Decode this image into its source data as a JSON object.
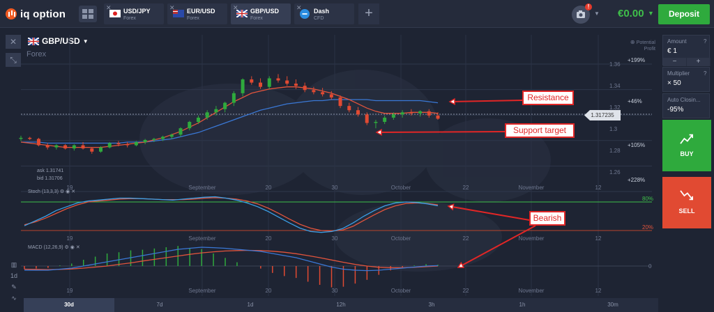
{
  "app": {
    "logo_text": "iq option"
  },
  "tabs": [
    {
      "name": "USD/JPY",
      "sub": "Forex",
      "flag": "jp"
    },
    {
      "name": "EUR/USD",
      "sub": "Forex",
      "flag": "eu"
    },
    {
      "name": "GBP/USD",
      "sub": "Forex",
      "flag": "gb"
    },
    {
      "name": "Dash",
      "sub": "CFD",
      "flag": "dash"
    }
  ],
  "header": {
    "balance": "€0.00",
    "deposit_label": "Deposit",
    "notification_count": "!"
  },
  "chart_header": {
    "pair": "GBP/USD",
    "category": "Forex",
    "potential_label": "Potential Profit"
  },
  "right_panel": {
    "amount_label": "Amount",
    "amount_value": "€ 1",
    "multiplier_label": "Multiplier",
    "multiplier_value": "× 50",
    "autoclose_label": "Auto Closin...",
    "autoclose_value": "-95%",
    "buy_label": "BUY",
    "sell_label": "SELL"
  },
  "price": {
    "ask": "ask 1.31741",
    "bid": "bid 1.31706",
    "current": "1.317235"
  },
  "profit_levels": [
    "+199%",
    "+46%",
    "+105%",
    "+228%"
  ],
  "price_ticks": [
    "1.36",
    "1.34",
    "1.32",
    "1.3",
    "1.28",
    "1.26"
  ],
  "time_ticks": [
    "19",
    "September",
    "20",
    "30",
    "October",
    "22",
    "November",
    "12"
  ],
  "stoch": {
    "label": "Stoch (13,3,3)",
    "upper": "80%",
    "lower": "20%"
  },
  "macd": {
    "label": "MACD (12,26,9)",
    "zero": "0"
  },
  "timeframes": [
    "30d",
    "7d",
    "1d",
    "12h",
    "3h",
    "1h",
    "30m"
  ],
  "active_timeframe": "30d",
  "annotations": {
    "resistance": "Resistance",
    "support": "Support target",
    "bearish": "Bearish"
  },
  "colors": {
    "up": "#2faa3d",
    "down": "#e14a32",
    "ma_fast": "#e2543c",
    "ma_slow": "#3a78d6",
    "stoch_k": "#3aa0e8",
    "stoch_d": "#e2543c",
    "annotation": "#e22626"
  },
  "chart_data": {
    "type": "candlestick",
    "symbol": "GBP/USD",
    "y_range": [
      1.25,
      1.37
    ],
    "x_labels": [
      "19",
      "September",
      "20",
      "30",
      "October",
      "22",
      "November",
      "12"
    ],
    "ohlc": [
      [
        1.293,
        1.296,
        1.291,
        1.294
      ],
      [
        1.294,
        1.295,
        1.292,
        1.293
      ],
      [
        1.293,
        1.294,
        1.286,
        1.287
      ],
      [
        1.287,
        1.289,
        1.283,
        1.285
      ],
      [
        1.285,
        1.288,
        1.283,
        1.287
      ],
      [
        1.287,
        1.288,
        1.283,
        1.284
      ],
      [
        1.284,
        1.288,
        1.282,
        1.287
      ],
      [
        1.287,
        1.29,
        1.283,
        1.284
      ],
      [
        1.284,
        1.285,
        1.279,
        1.281
      ],
      [
        1.281,
        1.286,
        1.28,
        1.285
      ],
      [
        1.285,
        1.29,
        1.284,
        1.289
      ],
      [
        1.289,
        1.291,
        1.286,
        1.288
      ],
      [
        1.288,
        1.29,
        1.285,
        1.287
      ],
      [
        1.287,
        1.291,
        1.286,
        1.29
      ],
      [
        1.29,
        1.293,
        1.288,
        1.292
      ],
      [
        1.292,
        1.294,
        1.29,
        1.293
      ],
      [
        1.293,
        1.296,
        1.291,
        1.295
      ],
      [
        1.295,
        1.298,
        1.293,
        1.297
      ],
      [
        1.297,
        1.304,
        1.295,
        1.303
      ],
      [
        1.303,
        1.31,
        1.301,
        1.309
      ],
      [
        1.309,
        1.315,
        1.307,
        1.313
      ],
      [
        1.313,
        1.32,
        1.311,
        1.318
      ],
      [
        1.318,
        1.324,
        1.315,
        1.321
      ],
      [
        1.321,
        1.328,
        1.318,
        1.327
      ],
      [
        1.327,
        1.338,
        1.324,
        1.336
      ],
      [
        1.336,
        1.35,
        1.333,
        1.349
      ],
      [
        1.349,
        1.352,
        1.344,
        1.346
      ],
      [
        1.346,
        1.35,
        1.34,
        1.342
      ],
      [
        1.342,
        1.352,
        1.34,
        1.35
      ],
      [
        1.35,
        1.354,
        1.346,
        1.348
      ],
      [
        1.348,
        1.352,
        1.343,
        1.345
      ],
      [
        1.345,
        1.349,
        1.34,
        1.343
      ],
      [
        1.343,
        1.346,
        1.337,
        1.339
      ],
      [
        1.339,
        1.342,
        1.335,
        1.337
      ],
      [
        1.337,
        1.341,
        1.333,
        1.335
      ],
      [
        1.335,
        1.338,
        1.33,
        1.332
      ],
      [
        1.332,
        1.334,
        1.322,
        1.324
      ],
      [
        1.324,
        1.327,
        1.318,
        1.32
      ],
      [
        1.32,
        1.323,
        1.314,
        1.316
      ],
      [
        1.316,
        1.318,
        1.306,
        1.308
      ],
      [
        1.308,
        1.311,
        1.303,
        1.309
      ],
      [
        1.309,
        1.315,
        1.307,
        1.313
      ],
      [
        1.313,
        1.318,
        1.311,
        1.316
      ],
      [
        1.316,
        1.32,
        1.313,
        1.318
      ],
      [
        1.318,
        1.321,
        1.315,
        1.317
      ],
      [
        1.317,
        1.32,
        1.314,
        1.319
      ],
      [
        1.319,
        1.321,
        1.313,
        1.315
      ],
      [
        1.315,
        1.318,
        1.311,
        1.312
      ]
    ],
    "ma_fast": [
      1.29,
      1.289,
      1.288,
      1.287,
      1.286,
      1.285,
      1.285,
      1.285,
      1.285,
      1.285,
      1.286,
      1.287,
      1.288,
      1.289,
      1.29,
      1.292,
      1.294,
      1.297,
      1.3,
      1.304,
      1.308,
      1.313,
      1.318,
      1.323,
      1.328,
      1.332,
      1.336,
      1.338,
      1.34,
      1.341,
      1.342,
      1.342,
      1.341,
      1.34,
      1.338,
      1.336,
      1.333,
      1.33,
      1.326,
      1.322,
      1.319,
      1.317,
      1.317,
      1.317,
      1.318,
      1.318,
      1.318,
      1.317
    ],
    "ma_slow": [
      1.29,
      1.29,
      1.29,
      1.289,
      1.289,
      1.289,
      1.289,
      1.289,
      1.289,
      1.289,
      1.289,
      1.289,
      1.29,
      1.29,
      1.29,
      1.291,
      1.292,
      1.293,
      1.295,
      1.297,
      1.299,
      1.302,
      1.305,
      1.308,
      1.311,
      1.314,
      1.317,
      1.32,
      1.322,
      1.324,
      1.326,
      1.327,
      1.328,
      1.329,
      1.329,
      1.33,
      1.33,
      1.33,
      1.33,
      1.33,
      1.329,
      1.329,
      1.329,
      1.329,
      1.329,
      1.329,
      1.328,
      1.327
    ],
    "stoch_k": [
      30,
      40,
      50,
      62,
      70,
      78,
      82,
      84,
      86,
      88,
      88,
      87,
      86,
      85,
      84,
      86,
      88,
      90,
      91,
      88,
      84,
      78,
      70,
      60,
      48,
      36,
      25,
      18,
      16,
      18,
      24,
      36,
      50,
      62,
      72,
      78,
      80,
      79,
      76,
      72
    ],
    "stoch_d": [
      32,
      38,
      46,
      56,
      66,
      74,
      80,
      82,
      84,
      86,
      87,
      87,
      86,
      85,
      85,
      85,
      86,
      88,
      89,
      88,
      86,
      82,
      76,
      67,
      56,
      44,
      33,
      25,
      20,
      19,
      21,
      29,
      41,
      53,
      64,
      72,
      77,
      78,
      77,
      74
    ],
    "macd_line": [
      -0.002,
      -0.002,
      -0.002,
      -0.0015,
      -0.001,
      0,
      0.001,
      0.002,
      0.003,
      0.004,
      0.005,
      0.006,
      0.007,
      0.008,
      0.0085,
      0.009,
      0.0088,
      0.0085,
      0.008,
      0.0075,
      0.007,
      0.006,
      0.005,
      0.004,
      0.0025,
      0.001,
      -0.0005,
      -0.0015,
      -0.002,
      -0.0022,
      -0.002,
      -0.0015,
      -0.001,
      -0.0005,
      0,
      0.0002
    ],
    "macd_signal": [
      -0.0015,
      -0.0016,
      -0.0017,
      -0.0016,
      -0.0014,
      -0.001,
      -0.0005,
      0,
      0.0008,
      0.0015,
      0.0024,
      0.0032,
      0.004,
      0.0048,
      0.0056,
      0.0063,
      0.0068,
      0.0072,
      0.0074,
      0.0075,
      0.0074,
      0.0071,
      0.0066,
      0.0059,
      0.005,
      0.004,
      0.0029,
      0.0018,
      0.0008,
      0,
      -0.0006,
      -0.0008,
      -0.0008,
      -0.0006,
      -0.0003,
      0
    ]
  }
}
